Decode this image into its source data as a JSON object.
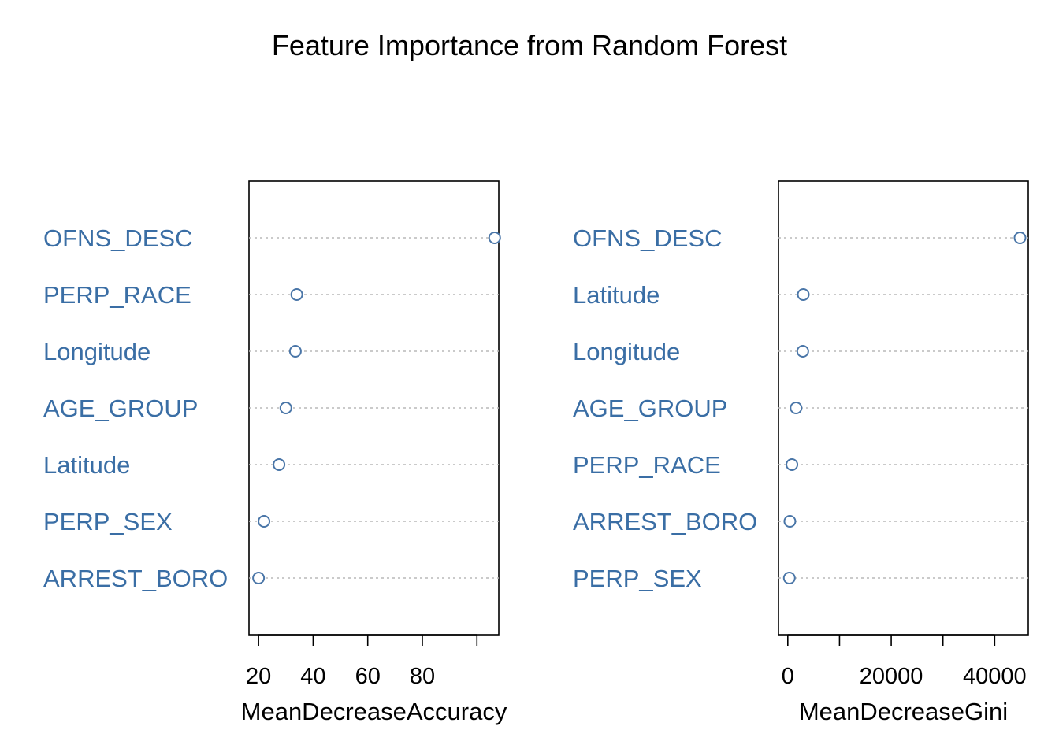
{
  "title": "Feature Importance from Random Forest",
  "colors": {
    "point": "#4a76a8",
    "label": "#3a6ea5",
    "gridline": "#b8b8b8",
    "frame": "#000000"
  },
  "chart_data": [
    {
      "type": "scatter",
      "style": "dotchart",
      "xlabel": "MeanDecreaseAccuracy",
      "xlim": [
        16.5,
        108
      ],
      "ticks": [
        20,
        40,
        60,
        80,
        100
      ],
      "tick_labels": [
        "20",
        "40",
        "60",
        "80",
        ""
      ],
      "categories": [
        "OFNS_DESC",
        "PERP_RACE",
        "Longitude",
        "AGE_GROUP",
        "Latitude",
        "PERP_SEX",
        "ARREST_BORO"
      ],
      "values": [
        106.5,
        34,
        33.5,
        30,
        27.5,
        22,
        20
      ],
      "grid": true,
      "legend": "none"
    },
    {
      "type": "scatter",
      "style": "dotchart",
      "xlabel": "MeanDecreaseGini",
      "xlim": [
        -1800,
        46500
      ],
      "ticks": [
        0,
        10000,
        20000,
        30000,
        40000
      ],
      "tick_labels": [
        "0",
        "",
        "20000",
        "",
        "40000"
      ],
      "categories": [
        "OFNS_DESC",
        "Latitude",
        "Longitude",
        "AGE_GROUP",
        "PERP_RACE",
        "ARREST_BORO",
        "PERP_SEX"
      ],
      "values": [
        44900,
        3000,
        2900,
        1600,
        800,
        400,
        300
      ],
      "grid": true,
      "legend": "none"
    }
  ]
}
